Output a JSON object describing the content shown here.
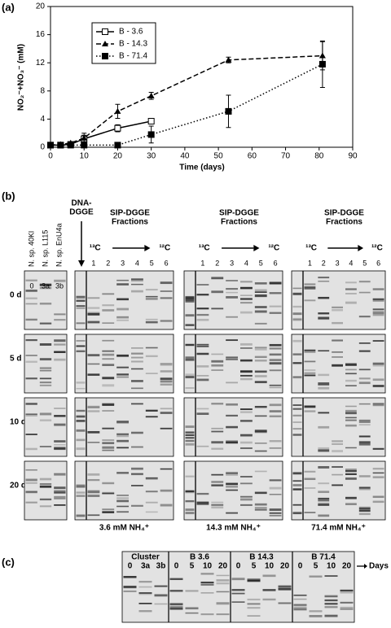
{
  "figure": {
    "panel_a": "(a)",
    "panel_b": "(b)",
    "panel_c": "(c)"
  },
  "chart_data": {
    "type": "line",
    "xlabel": "Time (days)",
    "ylabel": "NO₂⁻+NO₃⁻ (mM)",
    "xlim": [
      0,
      90
    ],
    "ylim": [
      0,
      20
    ],
    "xticks": [
      0,
      10,
      20,
      30,
      40,
      50,
      60,
      70,
      80,
      90
    ],
    "yticks": [
      0,
      4,
      8,
      12,
      16,
      20
    ],
    "legend": "upper left",
    "series": [
      {
        "name": "B - 3.6",
        "color": "#000000",
        "marker": "open-square",
        "line": "solid",
        "x": [
          0,
          3,
          6,
          10,
          20,
          30
        ],
        "values": [
          0.3,
          0.3,
          0.4,
          1.2,
          2.7,
          3.7
        ],
        "errors": [
          0.1,
          0.1,
          0.1,
          0.5,
          0.5,
          0.3
        ]
      },
      {
        "name": "B - 14.3",
        "color": "#000000",
        "marker": "triangle",
        "line": "dashed",
        "x": [
          0,
          3,
          6,
          10,
          20,
          30,
          53,
          81
        ],
        "values": [
          0.3,
          0.4,
          0.6,
          1.3,
          5.1,
          7.3,
          12.4,
          13.0
        ],
        "errors": [
          0.1,
          0.1,
          0.1,
          0.7,
          1.0,
          0.5,
          0.4,
          2.0
        ]
      },
      {
        "name": "B - 71.4",
        "color": "#000000",
        "marker": "square",
        "line": "dotted",
        "x": [
          0,
          3,
          6,
          10,
          20,
          30,
          53,
          81
        ],
        "values": [
          0.3,
          0.3,
          0.3,
          0.3,
          0.3,
          1.8,
          5.1,
          11.8
        ],
        "errors": [
          0.1,
          0.1,
          0.1,
          0.1,
          0.1,
          1.2,
          2.3,
          3.3
        ]
      }
    ]
  },
  "gel_b": {
    "reference_lanes": [
      "N. sp. 40Kl",
      "N. sp. L115",
      "N. sp. EnU4a"
    ],
    "reference_ids": [
      "0",
      "3a",
      "3b"
    ],
    "dna_title": [
      "DNA-",
      "DGGE"
    ],
    "sip_title": [
      "SIP-DGGE",
      "Fractions"
    ],
    "heavy": "¹³C",
    "light": "¹²C",
    "fractions": [
      "1",
      "2",
      "3",
      "4",
      "5",
      "6"
    ],
    "rows": [
      "0 d",
      "5 d",
      "10 d",
      "20 d"
    ],
    "panels": [
      "3.6 mM NH₄⁺",
      "14.3 mM NH₄⁺",
      "71.4 mM NH₄⁺"
    ]
  },
  "gel_c": {
    "groups": [
      {
        "name": "Cluster",
        "lanes": [
          "0",
          "3a",
          "3b"
        ]
      },
      {
        "name": "B 3.6",
        "lanes": [
          "0",
          "5",
          "10",
          "20"
        ]
      },
      {
        "name": "B 14.3",
        "lanes": [
          "0",
          "5",
          "10",
          "20"
        ]
      },
      {
        "name": "B 71.4",
        "lanes": [
          "0",
          "5",
          "10",
          "20"
        ]
      }
    ],
    "axis": "Days"
  }
}
